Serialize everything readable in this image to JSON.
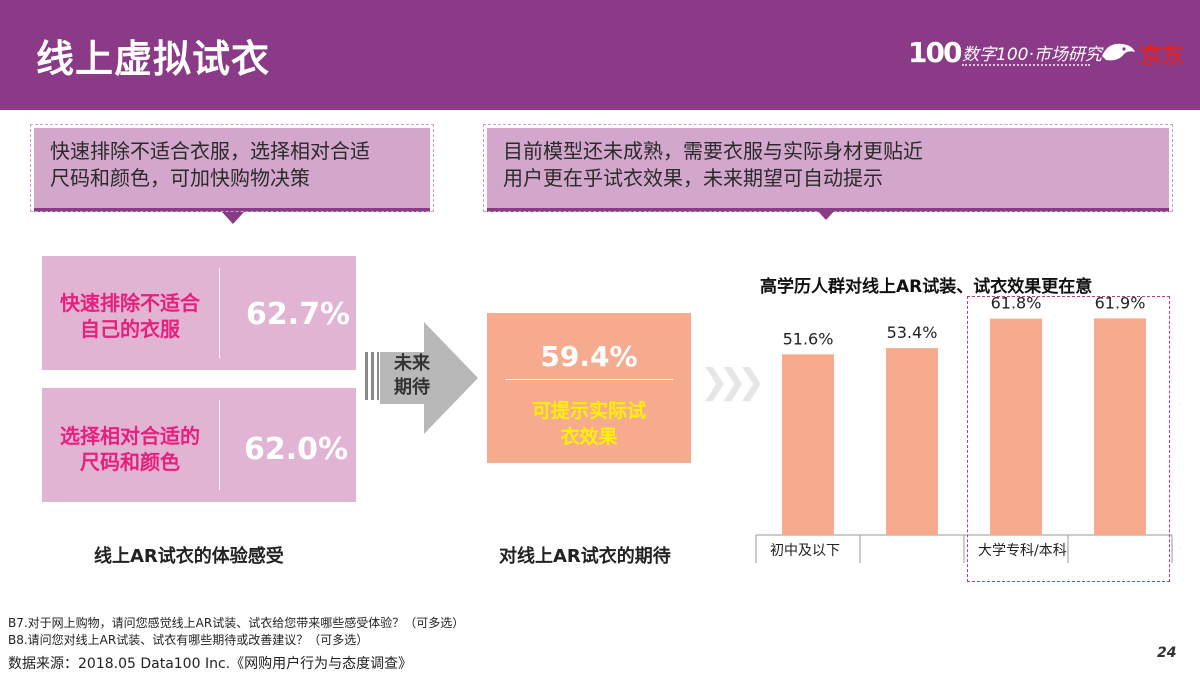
{
  "header": {
    "title": "线上虚拟试衣",
    "brand_logo_text": "100",
    "brand_name": "数字100·市场研究",
    "partner_name": "京东"
  },
  "callouts": {
    "left": [
      "快速排除不适合衣服，选择相对合适",
      "尺码和颜色，可加快购物决策"
    ],
    "right": [
      "目前模型还未成熟，需要衣服与实际身材更贴近",
      "用户更在乎试衣效果，未来期望可自动提示"
    ]
  },
  "experience": {
    "items": [
      {
        "label": [
          "快速排除不适合",
          "自己的衣服"
        ],
        "value": "62.7%"
      },
      {
        "label": [
          "选择相对合适的",
          "尺码和颜色"
        ],
        "value": "62.0%"
      }
    ],
    "caption": "线上AR试衣的体验感受"
  },
  "arrow": {
    "label": [
      "未来",
      "期待"
    ]
  },
  "expectation": {
    "value": "59.4%",
    "label": [
      "可提示实际试",
      "衣效果"
    ],
    "caption": "对线上AR试衣的期待"
  },
  "chart_data": {
    "type": "bar",
    "title": "高学历人群对线上AR试装、试衣效果更在意",
    "categories": [
      "初中及以下",
      "",
      "大学专科/本科",
      ""
    ],
    "values": [
      51.6,
      53.4,
      61.8,
      61.9
    ],
    "value_labels": [
      "51.6%",
      "53.4%",
      "61.8%",
      "61.9%"
    ],
    "ylim": [
      0,
      70
    ],
    "grid": false,
    "highlighted_group": "大学专科/本科",
    "colors": {
      "bar": "#f7ab8e",
      "highlight_border": "#b33a98"
    }
  },
  "footnotes": {
    "q1": "B7.对于网上购物，请问您感觉线上AR试装、试衣给您带来哪些感受体验？（可多选）",
    "q2": "B8.请问您对线上AR试装、试衣有哪些期待或改善建议？（可多选）",
    "source": "数据来源：2018.05 Data100 Inc.《网购用户行为与态度调查》"
  },
  "page_number": "24",
  "colors": {
    "brand_purple": "#8b3a87",
    "accent_pink": "#e6207d",
    "orange": "#f7ab8e",
    "yellow": "#fff200"
  }
}
